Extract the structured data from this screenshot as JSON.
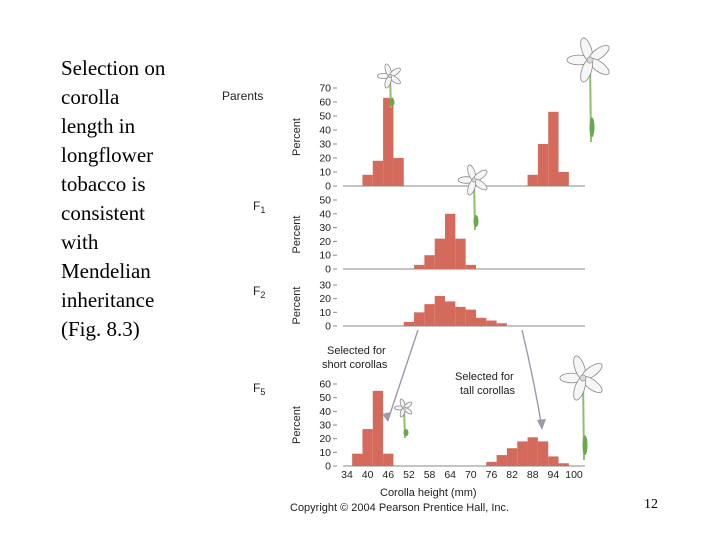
{
  "caption_lines": [
    "Selection on",
    "corolla",
    "length in",
    "longflower",
    "tobacco is",
    "consistent",
    "with",
    "Mendelian",
    "inheritance",
    "(Fig. 8.3)"
  ],
  "slide_number": "12",
  "copyright": "Copyright © 2004 Pearson Prentice Hall, Inc.",
  "colors": {
    "bar": "#d46a5c",
    "axis": "#888888",
    "arrow": "#9a9aa8",
    "text": "#222222"
  },
  "chart_data": [
    {
      "type": "bar",
      "name": "parents",
      "generation_label": "Parents",
      "ylabel": "Percent",
      "yticks": [
        0,
        10,
        20,
        30,
        40,
        50,
        60,
        70
      ],
      "ylim": [
        0,
        70
      ],
      "series": [
        {
          "name": "short parent",
          "bins": [
            [
              40,
              8
            ],
            [
              43,
              18
            ],
            [
              46,
              63
            ],
            [
              49,
              20
            ]
          ]
        },
        {
          "name": "tall parent",
          "bins": [
            [
              88,
              8
            ],
            [
              91,
              30
            ],
            [
              94,
              53
            ],
            [
              97,
              10
            ]
          ]
        }
      ]
    },
    {
      "type": "bar",
      "name": "f1",
      "generation_label": "F",
      "generation_sub": "1",
      "ylabel": "Percent",
      "yticks": [
        0,
        10,
        20,
        30,
        40,
        50
      ],
      "ylim": [
        0,
        50
      ],
      "series": [
        {
          "name": "F1",
          "bins": [
            [
              55,
              3
            ],
            [
              58,
              10
            ],
            [
              61,
              22
            ],
            [
              64,
              40
            ],
            [
              67,
              22
            ],
            [
              70,
              3
            ]
          ]
        }
      ]
    },
    {
      "type": "bar",
      "name": "f2",
      "generation_label": "F",
      "generation_sub": "2",
      "ylabel": "Percent",
      "yticks": [
        0,
        10,
        20,
        30
      ],
      "ylim": [
        0,
        30
      ],
      "series": [
        {
          "name": "F2",
          "bins": [
            [
              52,
              3
            ],
            [
              55,
              10
            ],
            [
              58,
              16
            ],
            [
              61,
              22
            ],
            [
              64,
              18
            ],
            [
              67,
              14
            ],
            [
              70,
              12
            ],
            [
              73,
              6
            ],
            [
              76,
              4
            ],
            [
              79,
              2
            ]
          ]
        }
      ]
    },
    {
      "type": "bar",
      "name": "f5",
      "generation_label": "F",
      "generation_sub": "5",
      "ylabel": "Percent",
      "yticks": [
        0,
        10,
        20,
        30,
        40,
        50,
        60
      ],
      "ylim": [
        0,
        60
      ],
      "xlabel": "Corolla height (mm)",
      "xticks": [
        34,
        40,
        46,
        52,
        58,
        64,
        70,
        76,
        82,
        88,
        94,
        100
      ],
      "series": [
        {
          "name": "short line",
          "bins": [
            [
              37,
              9
            ],
            [
              40,
              27
            ],
            [
              43,
              55
            ],
            [
              46,
              9
            ]
          ]
        },
        {
          "name": "tall line",
          "bins": [
            [
              76,
              3
            ],
            [
              79,
              8
            ],
            [
              82,
              13
            ],
            [
              85,
              18
            ],
            [
              88,
              21
            ],
            [
              91,
              18
            ],
            [
              94,
              7
            ],
            [
              97,
              2
            ]
          ]
        }
      ],
      "annotations": [
        "Selected for short corollas",
        "Selected for tall corollas"
      ]
    }
  ],
  "annotations": {
    "short_line1": "Selected for",
    "short_line2": "short corollas",
    "tall_line1": "Selected for",
    "tall_line2": "tall corollas"
  }
}
